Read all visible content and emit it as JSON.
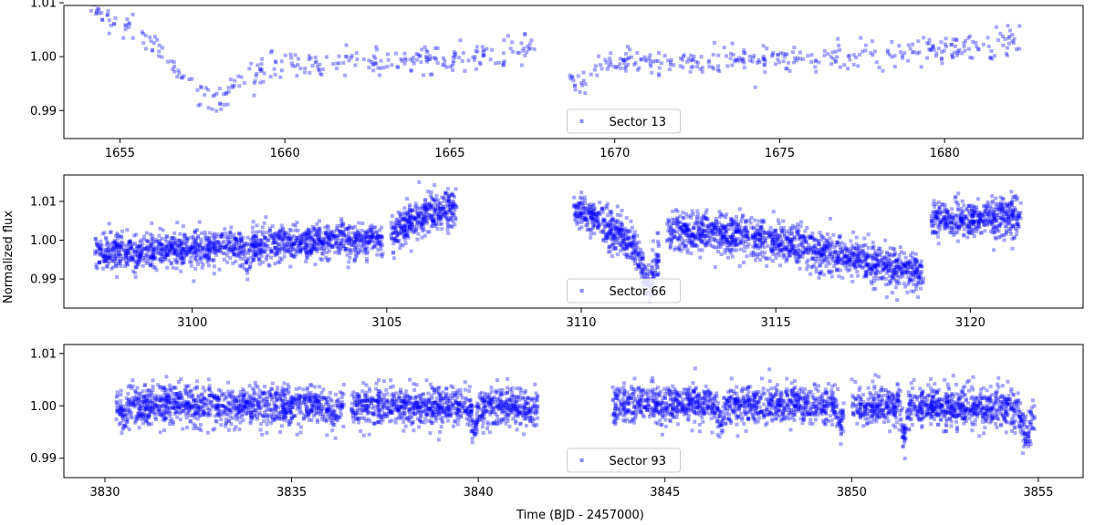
{
  "chart_data": {
    "type": "scatter",
    "xlabel": "Time (BJD - 2457000)",
    "ylabel": "Normalized flux",
    "marker_color": "#0000ff",
    "panels": [
      {
        "legend": "Sector 13",
        "xlim": [
          1653.3,
          1684.2
        ],
        "ylim": [
          0.9848,
          1.0095
        ],
        "xticks": [
          1655,
          1660,
          1665,
          1670,
          1675,
          1680
        ],
        "yticks": [
          0.99,
          1.0,
          1.01
        ],
        "yticklabels": [
          "0.99",
          "1.00",
          "1.01"
        ],
        "segments": [
          {
            "x": [
              1654.1,
              1682.3
            ],
            "gap": [
              1667.6,
              1668.6
            ],
            "n": 650,
            "scatter": 0.0013,
            "trend": [
              [
                1654.1,
                1.0095
              ],
              [
                1655.0,
                1.007
              ],
              [
                1656.0,
                1.0025
              ],
              [
                1656.8,
                0.9965
              ],
              [
                1657.6,
                0.9925
              ],
              [
                1657.9,
                0.9915
              ],
              [
                1658.6,
                0.995
              ],
              [
                1659.5,
                0.998
              ],
              [
                1660.5,
                0.9985
              ],
              [
                1662.0,
                0.999
              ],
              [
                1664.0,
                0.9995
              ],
              [
                1666.0,
                1.0005
              ],
              [
                1667.5,
                1.002
              ],
              [
                1668.6,
                0.999
              ],
              [
                1669.2,
                0.9975
              ],
              [
                1670.0,
                0.999
              ],
              [
                1674.0,
                0.9995
              ],
              [
                1678.0,
                1.0005
              ],
              [
                1681.0,
                1.002
              ],
              [
                1682.3,
                1.003
              ]
            ],
            "dips": [
              [
                1668.85,
                0.0035,
                0.25
              ]
            ]
          }
        ]
      },
      {
        "legend": "Sector 66",
        "xlim": [
          3096.7,
          3122.9
        ],
        "ylim": [
          0.9825,
          1.0168
        ],
        "xticks": [
          3100,
          3105,
          3110,
          3115,
          3120
        ],
        "yticks": [
          0.99,
          1.0,
          1.01
        ],
        "yticklabels": [
          "0.99",
          "1.00",
          "1.01"
        ],
        "segments": [
          {
            "x": [
              3097.5,
              3104.9
            ],
            "n": 1500,
            "scatter": 0.0022,
            "trend": [
              [
                3097.5,
                0.9965
              ],
              [
                3101.0,
                0.9985
              ],
              [
                3104.9,
                1.0005
              ]
            ],
            "dips": [
              [
                3101.4,
                0.003,
                0.12
              ]
            ]
          },
          {
            "x": [
              3105.1,
              3106.8
            ],
            "n": 400,
            "scatter": 0.0025,
            "trend": [
              [
                3105.1,
                1.0015
              ],
              [
                3106.0,
                1.0065
              ],
              [
                3106.8,
                1.0085
              ]
            ],
            "dips": []
          },
          {
            "x": [
              3109.8,
              3112.0
            ],
            "n": 500,
            "scatter": 0.0025,
            "trend": [
              [
                3109.8,
                1.008
              ],
              [
                3110.5,
                1.0045
              ],
              [
                3111.3,
                0.999
              ],
              [
                3111.8,
                0.992
              ],
              [
                3112.0,
                0.996
              ]
            ],
            "dips": [
              [
                3111.7,
                0.004,
                0.15
              ]
            ]
          },
          {
            "x": [
              3112.2,
              3118.8
            ],
            "n": 1400,
            "scatter": 0.0025,
            "trend": [
              [
                3112.2,
                1.002
              ],
              [
                3114.0,
                1.0015
              ],
              [
                3116.0,
                0.9975
              ],
              [
                3118.0,
                0.9925
              ],
              [
                3118.8,
                0.9915
              ]
            ],
            "dips": []
          },
          {
            "x": [
              3119.0,
              3121.3
            ],
            "n": 500,
            "scatter": 0.0025,
            "trend": [
              [
                3119.0,
                1.005
              ],
              [
                3121.3,
                1.006
              ]
            ],
            "dips": []
          }
        ]
      },
      {
        "legend": "Sector 93",
        "xlim": [
          3828.9,
          3856.2
        ],
        "ylim": [
          0.9863,
          1.0117
        ],
        "xticks": [
          3830,
          3835,
          3840,
          3845,
          3850,
          3855
        ],
        "yticks": [
          0.99,
          1.0,
          1.01
        ],
        "yticklabels": [
          "0.99",
          "1.00",
          "1.01"
        ],
        "segments": [
          {
            "x": [
              3830.3,
              3836.4
            ],
            "n": 1200,
            "scatter": 0.0018,
            "trend": [
              [
                3830.3,
                1.0003
              ],
              [
                3836.4,
                1.0
              ]
            ],
            "dips": [
              [
                3830.5,
                0.003,
                0.1
              ],
              [
                3836.1,
                0.003,
                0.1
              ]
            ]
          },
          {
            "x": [
              3836.6,
              3841.6
            ],
            "n": 1000,
            "scatter": 0.0018,
            "trend": [
              [
                3836.6,
                1.0
              ],
              [
                3841.6,
                0.9998
              ]
            ],
            "dips": [
              [
                3839.9,
                0.006,
                0.07
              ]
            ]
          },
          {
            "x": [
              3843.6,
              3849.8
            ],
            "n": 1200,
            "scatter": 0.0018,
            "trend": [
              [
                3843.6,
                1.0005
              ],
              [
                3849.8,
                1.0
              ]
            ],
            "dips": [
              [
                3846.5,
                0.003,
                0.1
              ],
              [
                3849.7,
                0.003,
                0.1
              ]
            ]
          },
          {
            "x": [
              3850.0,
              3854.9
            ],
            "n": 1000,
            "scatter": 0.0018,
            "trend": [
              [
                3850.0,
                1.0
              ],
              [
                3854.9,
                0.9995
              ]
            ],
            "dips": [
              [
                3851.4,
                0.006,
                0.07
              ],
              [
                3854.7,
                0.006,
                0.15
              ]
            ]
          }
        ]
      }
    ]
  }
}
